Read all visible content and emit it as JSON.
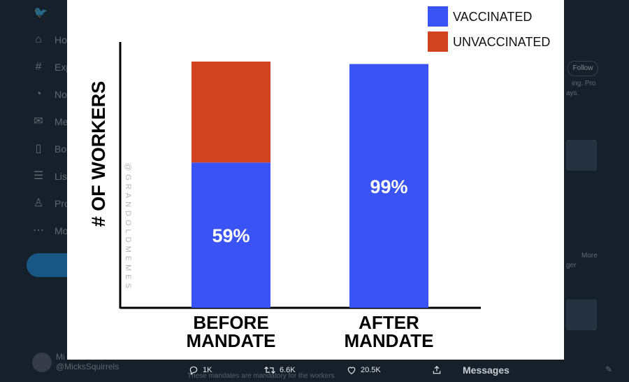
{
  "sidebar": {
    "items": [
      {
        "label": "Ho",
        "icon": "home-icon"
      },
      {
        "label": "Exp",
        "icon": "hashtag-icon"
      },
      {
        "label": "No",
        "icon": "bell-icon"
      },
      {
        "label": "Me",
        "icon": "mail-icon"
      },
      {
        "label": "Bo",
        "icon": "bookmark-icon"
      },
      {
        "label": "Lis",
        "icon": "list-icon"
      },
      {
        "label": "Pro",
        "icon": "profile-icon"
      },
      {
        "label": "Mo",
        "icon": "more-icon"
      }
    ],
    "user": {
      "name": "Mi",
      "handle": "@MicksSquirrels"
    }
  },
  "right": {
    "follow_label": "Follow",
    "snippet1": "ing. Pro",
    "snippet2": "ays.",
    "snippet3": "More",
    "snippet4": "ger"
  },
  "chart_data": {
    "type": "bar",
    "stacked": true,
    "categories": [
      "BEFORE\nMANDATE",
      "AFTER\nMANDATE"
    ],
    "category_lines": [
      [
        "BEFORE",
        "MANDATE"
      ],
      [
        "AFTER",
        "MANDATE"
      ]
    ],
    "series": [
      {
        "name": "VACCINATED",
        "color": "#3a53f5",
        "values": [
          59,
          99
        ],
        "labels": [
          "59%",
          "99%"
        ]
      },
      {
        "name": "UNVACCINATED",
        "color": "#d1421f",
        "values": [
          41,
          0
        ]
      }
    ],
    "ylabel": "# OF WORKERS",
    "watermark": "@GRANDOLDMEMES",
    "legend_position": "top-right"
  },
  "actions": {
    "reply_count": "1K",
    "retweet_count": "6.6K",
    "like_count": "20.5K"
  },
  "messages": {
    "label": "Messages"
  },
  "ghost_text": "These mandates are mandatory for the workers"
}
